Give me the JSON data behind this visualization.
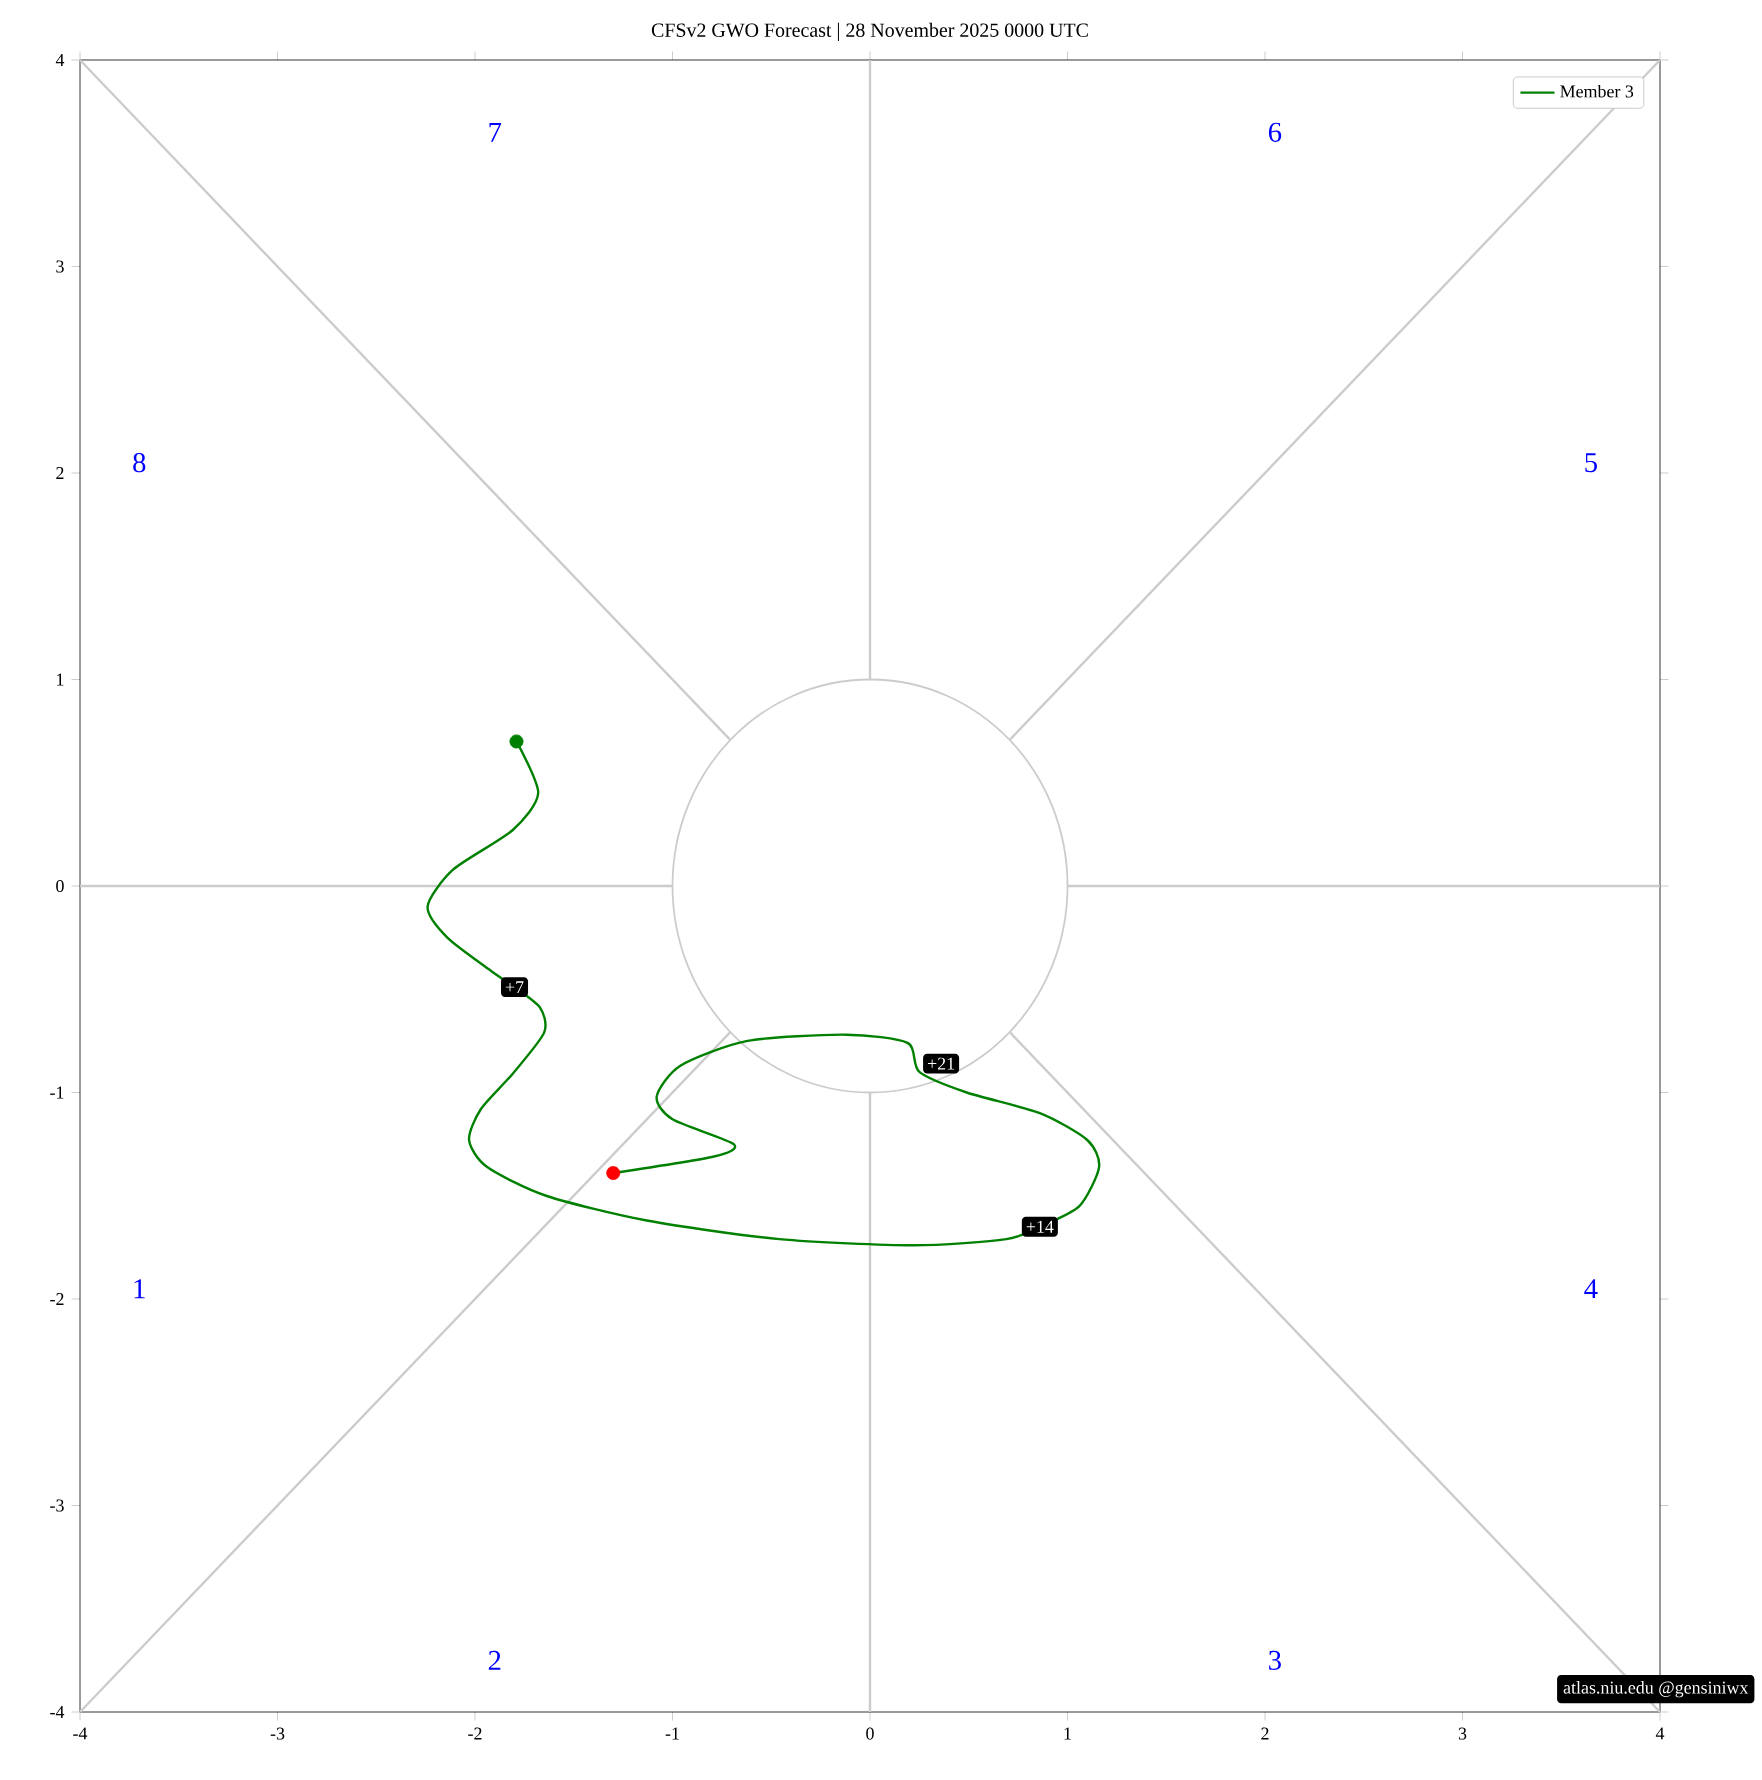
{
  "chart_data": {
    "type": "line",
    "title": "CFSv2 GWO Forecast   |   28  November  2025 0000 UTC",
    "xlim": [
      -4,
      4
    ],
    "ylim": [
      -4,
      4
    ],
    "xticks": [
      -4,
      -3,
      -2,
      -1,
      0,
      1,
      2,
      3,
      4
    ],
    "yticks": [
      -4,
      -3,
      -2,
      -1,
      0,
      1,
      2,
      3,
      4
    ],
    "grid": false,
    "legend": "top right",
    "series": [
      {
        "type": "line",
        "color": "#cccccc",
        "x": [
          -4,
          -0.71
        ],
        "values": [
          -4,
          -0.71
        ]
      },
      {
        "type": "line",
        "color": "#cccccc",
        "x": [
          0.71,
          4
        ],
        "values": [
          0.71,
          4
        ]
      },
      {
        "type": "line",
        "color": "#cccccc",
        "x": [
          -4,
          -0.71
        ],
        "values": [
          4,
          0.71
        ]
      },
      {
        "type": "line",
        "color": "#cccccc",
        "x": [
          0.71,
          4
        ],
        "values": [
          -0.71,
          -4
        ]
      },
      {
        "type": "line",
        "color": "#cccccc",
        "x": [
          -4,
          -1
        ],
        "values": [
          0,
          0
        ]
      },
      {
        "type": "line",
        "color": "#cccccc",
        "x": [
          1,
          4
        ],
        "values": [
          0,
          0
        ]
      },
      {
        "type": "line",
        "color": "#cccccc",
        "x": [
          0,
          0
        ],
        "values": [
          -4,
          -1
        ]
      },
      {
        "type": "line",
        "color": "#cccccc",
        "x": [
          0,
          0
        ],
        "values": [
          1,
          4
        ]
      },
      {
        "name": "Member 3",
        "type": "line",
        "color": "#008000",
        "x": [
          -1.79,
          -1.68,
          -1.81,
          -2.11,
          -2.24,
          -2.14,
          -1.92,
          -1.8,
          -1.67,
          -1.65,
          -1.81,
          -1.97,
          -2.03,
          -1.94,
          -1.64,
          -1.13,
          -0.46,
          0.22,
          0.69,
          0.86,
          1.06,
          1.16,
          1.1,
          0.86,
          0.49,
          0.25,
          0.19,
          -0.12,
          -0.62,
          -0.96,
          -1.08,
          -1.0,
          -0.69,
          -0.79,
          -1.3
        ],
        "values": [
          0.7,
          0.45,
          0.27,
          0.08,
          -0.1,
          -0.25,
          -0.41,
          -0.49,
          -0.59,
          -0.71,
          -0.91,
          -1.08,
          -1.23,
          -1.36,
          -1.5,
          -1.62,
          -1.71,
          -1.74,
          -1.71,
          -1.65,
          -1.55,
          -1.36,
          -1.23,
          -1.1,
          -1.0,
          -0.9,
          -0.76,
          -0.72,
          -0.75,
          -0.87,
          -1.02,
          -1.13,
          -1.25,
          -1.31,
          -1.39
        ]
      },
      {
        "type": "scatter",
        "color": "#008000",
        "x": [
          -1.79
        ],
        "values": [
          0.7
        ]
      },
      {
        "type": "scatter",
        "color": "#ff0000",
        "x": [
          -1.3
        ],
        "values": [
          -1.39
        ]
      }
    ],
    "annotations": [
      "1",
      "2",
      "3",
      "4",
      "5",
      "6",
      "7",
      "8",
      "atlas.niu.edu  @gensiniwx",
      {
        "text": "+7",
        "x": -1.8,
        "y": -0.49
      },
      {
        "text": "+14",
        "x": 0.86,
        "y": -1.65
      },
      {
        "text": "+21",
        "x": 0.36,
        "y": -0.86
      }
    ]
  }
}
